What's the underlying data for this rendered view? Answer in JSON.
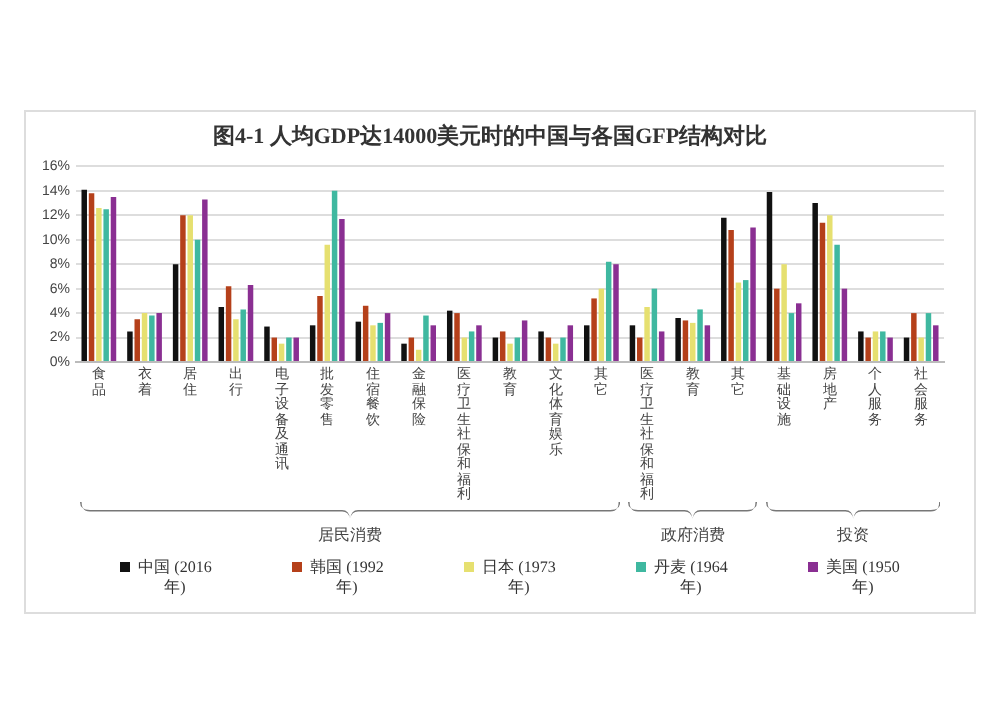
{
  "chart_data": {
    "type": "bar",
    "title": "图4-1 人均GDP达14000美元时的中国与各国GFP结构对比",
    "categories": [
      "食品",
      "衣着",
      "居住",
      "出行",
      "电子设备及通讯",
      "批发零售",
      "住宿餐饮",
      "金融保险",
      "医疗卫生社保和福利",
      "教育",
      "文化体育娱乐",
      "其它",
      "医疗卫生社保和福利",
      "教育",
      "其它",
      "基础设施",
      "房地产",
      "个人服务",
      "社会服务"
    ],
    "series": [
      {
        "name": "中国 (2016年)",
        "color": "#111111",
        "values": [
          14.1,
          2.5,
          8.0,
          4.5,
          2.9,
          3.0,
          3.3,
          1.5,
          4.2,
          2.0,
          2.5,
          3.0,
          3.0,
          3.6,
          11.8,
          13.9,
          13.0,
          2.5,
          2.0
        ]
      },
      {
        "name": "韩国 (1992年)",
        "color": "#b5401a",
        "values": [
          13.8,
          3.5,
          12.0,
          6.2,
          2.0,
          5.4,
          4.6,
          2.0,
          4.0,
          2.5,
          2.0,
          5.2,
          2.0,
          3.4,
          10.8,
          6.0,
          11.4,
          2.0,
          4.0
        ]
      },
      {
        "name": "日本 (1973年)",
        "color": "#e6e070",
        "values": [
          12.6,
          4.0,
          12.0,
          3.5,
          1.5,
          9.6,
          3.0,
          1.0,
          2.0,
          1.5,
          1.5,
          6.0,
          4.5,
          3.2,
          6.5,
          8.0,
          12.0,
          2.5,
          2.0
        ]
      },
      {
        "name": "丹麦 (1964年)",
        "color": "#3fb8a0",
        "values": [
          12.5,
          3.8,
          10.0,
          4.3,
          2.0,
          14.0,
          3.2,
          3.8,
          2.5,
          2.0,
          2.0,
          8.2,
          6.0,
          4.3,
          6.7,
          4.0,
          9.6,
          2.5,
          4.0
        ]
      },
      {
        "name": "美国 (1950年)",
        "color": "#8a2f92",
        "values": [
          13.5,
          4.0,
          13.3,
          6.3,
          2.0,
          11.7,
          4.0,
          3.0,
          3.0,
          3.4,
          3.0,
          8.0,
          2.5,
          3.0,
          11.0,
          4.8,
          6.0,
          2.0,
          3.0
        ]
      }
    ],
    "ylim": [
      0,
      16
    ],
    "yticks": [
      {
        "value": 0,
        "label": "0%"
      },
      {
        "value": 2,
        "label": "2%"
      },
      {
        "value": 4,
        "label": "4%"
      },
      {
        "value": 6,
        "label": "6%"
      },
      {
        "value": 8,
        "label": "8%"
      },
      {
        "value": 10,
        "label": "10%"
      },
      {
        "value": 12,
        "label": "12%"
      },
      {
        "value": 14,
        "label": "14%"
      },
      {
        "value": 16,
        "label": "16%"
      }
    ],
    "grid": "y",
    "legend": "bottom",
    "annotations": [
      "居民消费",
      "政府消费",
      "投资"
    ]
  }
}
